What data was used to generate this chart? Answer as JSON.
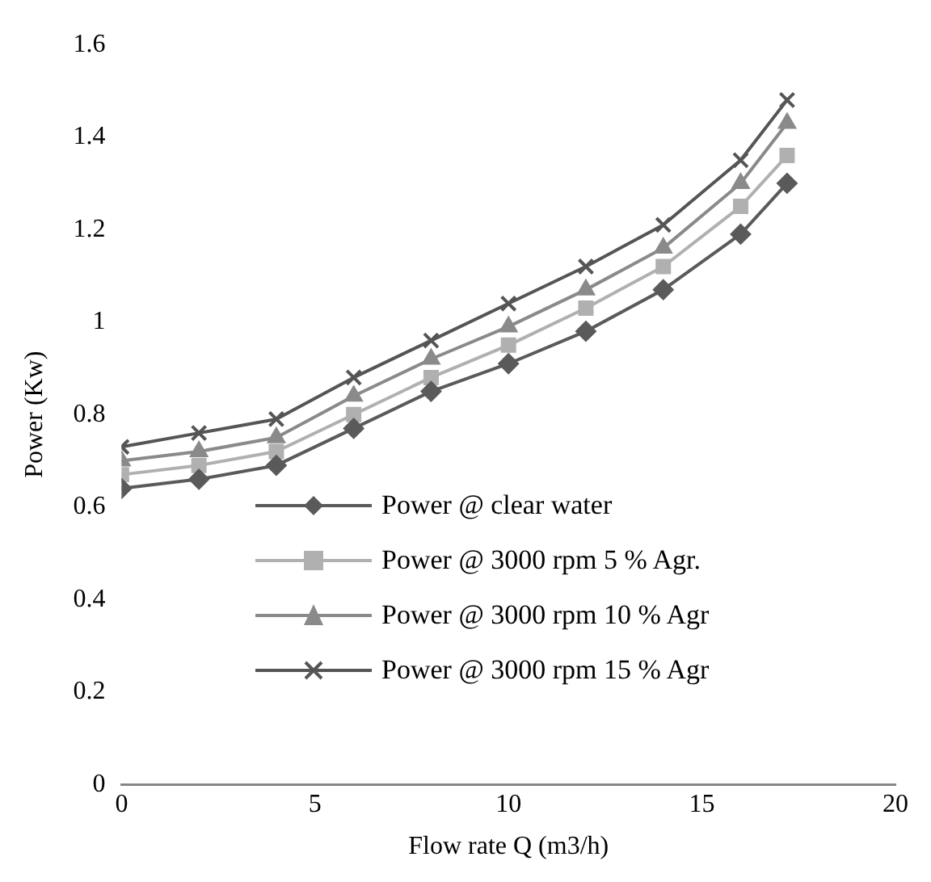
{
  "chart_data": {
    "type": "line",
    "xlabel": "Flow rate Q (m3/h)",
    "ylabel": "Power (Kw)",
    "xlim": [
      0,
      20
    ],
    "xticks": [
      0,
      5,
      10,
      15,
      20
    ],
    "ylim": [
      0,
      1.6
    ],
    "yticks": [
      0,
      0.2,
      0.4,
      0.6,
      0.8,
      1,
      1.2,
      1.4,
      1.6
    ],
    "grid": false,
    "legend": "bottom left",
    "line_style": "solid",
    "x": [
      0,
      2,
      4,
      6,
      8,
      10,
      12,
      14,
      16,
      17.2
    ],
    "series": [
      {
        "name": "Power @ clear water",
        "color": "#5a5a5a",
        "marker": "diamond",
        "values": [
          0.64,
          0.66,
          0.69,
          0.77,
          0.85,
          0.91,
          0.98,
          1.07,
          1.19,
          1.3
        ]
      },
      {
        "name": "Power @ 3000 rpm 5 % Agr.",
        "color": "#b0b0b0",
        "marker": "square",
        "values": [
          0.67,
          0.69,
          0.72,
          0.8,
          0.88,
          0.95,
          1.03,
          1.12,
          1.25,
          1.36
        ]
      },
      {
        "name": "Power @ 3000 rpm 10 % Agr",
        "color": "#8a8a8a",
        "marker": "triangle",
        "values": [
          0.7,
          0.72,
          0.75,
          0.84,
          0.92,
          0.99,
          1.07,
          1.16,
          1.3,
          1.43
        ]
      },
      {
        "name": "Power @ 3000 rpm 15 % Agr",
        "color": "#555555",
        "marker": "cross",
        "values": [
          0.73,
          0.76,
          0.79,
          0.88,
          0.96,
          1.04,
          1.12,
          1.21,
          1.35,
          1.48
        ]
      }
    ]
  }
}
